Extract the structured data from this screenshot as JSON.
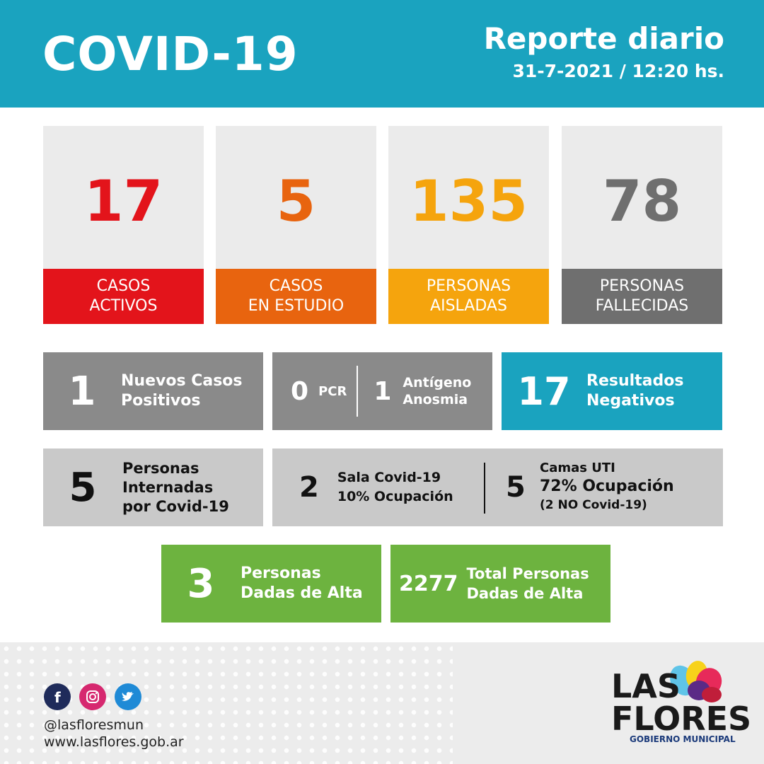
{
  "header": {
    "title": "COVID-19",
    "report": "Reporte diario",
    "date": "31-7-2021 / 12:20 hs."
  },
  "cards": [
    {
      "value": "17",
      "line1": "CASOS",
      "line2": "ACTIVOS",
      "color": "#e3141b"
    },
    {
      "value": "5",
      "line1": "CASOS",
      "line2": "EN ESTUDIO",
      "color": "#e8640f"
    },
    {
      "value": "135",
      "line1": "PERSONAS",
      "line2": "AISLADAS",
      "color": "#f5a40d"
    },
    {
      "value": "78",
      "line1": "PERSONAS",
      "line2": "FALLECIDAS",
      "color": "#6f6f6f"
    }
  ],
  "row1": {
    "nuevos": {
      "value": "1",
      "line1": "Nuevos Casos",
      "line2": "Positivos"
    },
    "pcr": {
      "value": "0",
      "label": "PCR"
    },
    "antigeno": {
      "value": "1",
      "line1": "Antígeno",
      "line2": "Anosmia"
    },
    "negativos": {
      "value": "17",
      "line1": "Resultados",
      "line2": "Negativos"
    }
  },
  "row2": {
    "internadas": {
      "value": "5",
      "line1": "Personas",
      "line2": "Internadas",
      "line3": "por Covid-19"
    },
    "sala": {
      "value": "2",
      "line1": "Sala Covid-19",
      "line2": "10% Ocupación"
    },
    "uti": {
      "value": "5",
      "line1": "Camas UTI",
      "line2": "72% Ocupación",
      "line3": "(2 NO Covid-19)"
    }
  },
  "row3": {
    "alta": {
      "value": "3",
      "line1": "Personas",
      "line2": "Dadas de Alta"
    },
    "total": {
      "value": "2277",
      "line1": "Total Personas",
      "line2": "Dadas de Alta"
    }
  },
  "footer": {
    "social_icons": [
      "facebook-icon",
      "instagram-icon",
      "twitter-icon"
    ],
    "handle": "@lasfloresmun",
    "website": "www.lasflores.gob.ar",
    "logo_line1": "LAS",
    "logo_line2": "FLORES",
    "logo_subtitle": "GOBIERNO MUNICIPAL"
  },
  "colors": {
    "header": "#1aa3bf",
    "gray_dark": "#8a8a8a",
    "gray_light": "#c9c9c9",
    "green": "#6db33f"
  }
}
